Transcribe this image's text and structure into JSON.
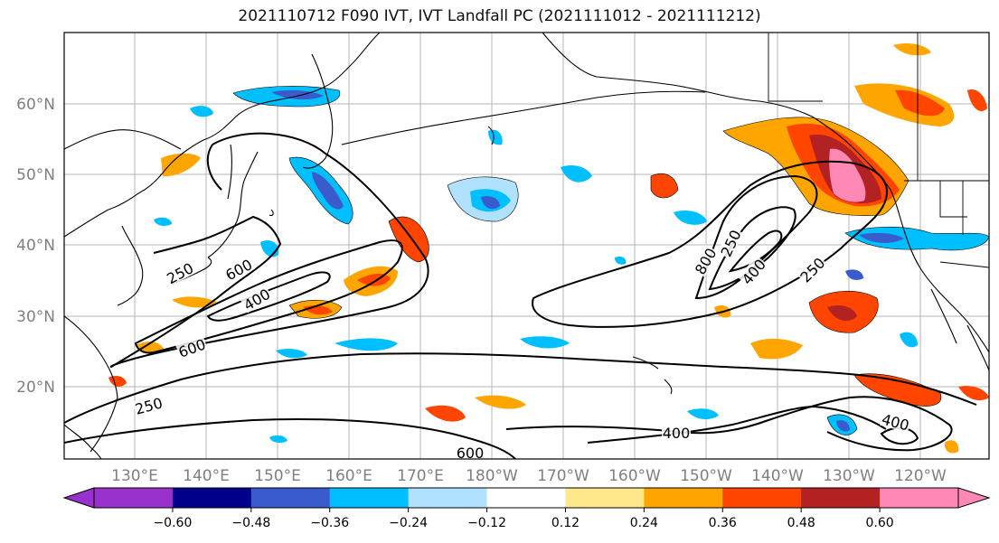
{
  "title": "2021110712 F090 IVT, IVT Landfall PC (2021111012 - 2021111212)",
  "map": {
    "lon_labels": [
      "130°E",
      "140°E",
      "150°E",
      "160°E",
      "170°E",
      "180°W",
      "170°W",
      "160°W",
      "150°W",
      "140°W",
      "130°W",
      "120°W"
    ],
    "lat_labels": [
      "60°N",
      "50°N",
      "40°N",
      "30°N",
      "20°N"
    ],
    "contour_levels": [
      "250",
      "400",
      "600",
      "800"
    ],
    "contour_labels": [
      "250",
      "250",
      "600",
      "400",
      "250",
      "400",
      "600",
      "800",
      "250",
      "400",
      "600",
      "400"
    ],
    "grid": true
  },
  "colorbar": {
    "colors": [
      "#9932cc",
      "#00008b",
      "#3a5bcc",
      "#00bfff",
      "#b0e2ff",
      "#ffffff",
      "#ffe88c",
      "#ffa500",
      "#ff4500",
      "#b22222",
      "#ff89b4"
    ],
    "extend": "both",
    "tick_labels": [
      "−0.60",
      "−0.48",
      "−0.36",
      "−0.24",
      "−0.12",
      "0.12",
      "0.24",
      "0.36",
      "0.48",
      "0.60"
    ]
  }
}
